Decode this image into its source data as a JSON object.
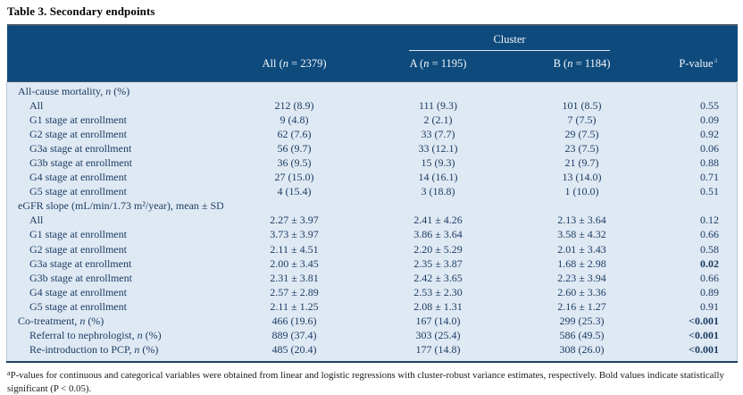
{
  "title": "Table 3. Secondary endpoints",
  "table": {
    "cluster_header": "Cluster",
    "columns": {
      "all": "All (n = 2379)",
      "a": "A (n = 1195)",
      "b": "B (n = 1184)",
      "pvalue": "P-value",
      "pvalue_marker": "a"
    },
    "header_bg_color": "#0e4a7c",
    "body_bg_color": "#dfe9f4",
    "body_text_color": "#1c3c63",
    "rows": [
      {
        "label": "All-cause mortality, n (%)",
        "indent": 0,
        "all": "",
        "a": "",
        "b": "",
        "p": "",
        "p_bold": false
      },
      {
        "label": "All",
        "indent": 1,
        "all": "212 (8.9)",
        "a": "111 (9.3)",
        "b": "101 (8.5)",
        "p": "0.55",
        "p_bold": false
      },
      {
        "label": "G1 stage at enrollment",
        "indent": 1,
        "all": "9 (4.8)",
        "a": "2 (2.1)",
        "b": "7 (7.5)",
        "p": "0.09",
        "p_bold": false
      },
      {
        "label": "G2 stage at enrollment",
        "indent": 1,
        "all": "62 (7.6)",
        "a": "33 (7.7)",
        "b": "29 (7.5)",
        "p": "0.92",
        "p_bold": false
      },
      {
        "label": "G3a stage at enrollment",
        "indent": 1,
        "all": "56 (9.7)",
        "a": "33 (12.1)",
        "b": "23 (7.5)",
        "p": "0.06",
        "p_bold": false
      },
      {
        "label": "G3b stage at enrollment",
        "indent": 1,
        "all": "36 (9.5)",
        "a": "15 (9.3)",
        "b": "21 (9.7)",
        "p": "0.88",
        "p_bold": false
      },
      {
        "label": "G4 stage at enrollment",
        "indent": 1,
        "all": "27 (15.0)",
        "a": "14 (16.1)",
        "b": "13 (14.0)",
        "p": "0.71",
        "p_bold": false
      },
      {
        "label": "G5 stage at enrollment",
        "indent": 1,
        "all": "4 (15.4)",
        "a": "3 (18.8)",
        "b": "1 (10.0)",
        "p": "0.51",
        "p_bold": false
      },
      {
        "label": "eGFR slope (mL/min/1.73 m²/year), mean ± SD",
        "indent": 0,
        "all": "",
        "a": "",
        "b": "",
        "p": "",
        "p_bold": false
      },
      {
        "label": "All",
        "indent": 1,
        "all": "2.27 ± 3.97",
        "a": "2.41 ± 4.26",
        "b": "2.13 ± 3.64",
        "p": "0.12",
        "p_bold": false
      },
      {
        "label": "G1 stage at enrollment",
        "indent": 1,
        "all": "3.73 ± 3.97",
        "a": "3.86 ± 3.64",
        "b": "3.58 ± 4.32",
        "p": "0.66",
        "p_bold": false
      },
      {
        "label": "G2 stage at enrollment",
        "indent": 1,
        "all": "2.11 ± 4.51",
        "a": "2.20 ± 5.29",
        "b": "2.01 ± 3.43",
        "p": "0.58",
        "p_bold": false
      },
      {
        "label": "G3a stage at enrollment",
        "indent": 1,
        "all": "2.00 ± 3.45",
        "a": "2.35 ± 3.87",
        "b": "1.68 ± 2.98",
        "p": "0.02",
        "p_bold": true
      },
      {
        "label": "G3b stage at enrollment",
        "indent": 1,
        "all": "2.31 ± 3.81",
        "a": "2.42 ± 3.65",
        "b": "2.23 ± 3.94",
        "p": "0.66",
        "p_bold": false
      },
      {
        "label": "G4 stage at enrollment",
        "indent": 1,
        "all": "2.57 ± 2.89",
        "a": "2.53 ± 2.30",
        "b": "2.60 ± 3.36",
        "p": "0.89",
        "p_bold": false
      },
      {
        "label": "G5 stage at enrollment",
        "indent": 1,
        "all": "2.11 ± 1.25",
        "a": "2.08 ± 1.31",
        "b": "2.16 ± 1.27",
        "p": "0.91",
        "p_bold": false
      },
      {
        "label": "Co-treatment, n (%)",
        "indent": 0,
        "all": "466 (19.6)",
        "a": "167 (14.0)",
        "b": "299 (25.3)",
        "p": "<0.001",
        "p_bold": true
      },
      {
        "label": "Referral to nephrologist, n (%)",
        "indent": 1,
        "all": "889 (37.4)",
        "a": "303 (25.4)",
        "b": "586 (49.5)",
        "p": "<0.001",
        "p_bold": true
      },
      {
        "label": "Re-introduction to PCP, n (%)",
        "indent": 1,
        "all": "485 (20.4)",
        "a": "177 (14.8)",
        "b": "308 (26.0)",
        "p": "<0.001",
        "p_bold": true
      }
    ]
  },
  "footnote": {
    "marker": "a",
    "text": "P-values for continuous and categorical variables were obtained from linear and logistic regressions with cluster-robust variance estimates, respectively. Bold values indicate statistically significant (P < 0.05)."
  }
}
